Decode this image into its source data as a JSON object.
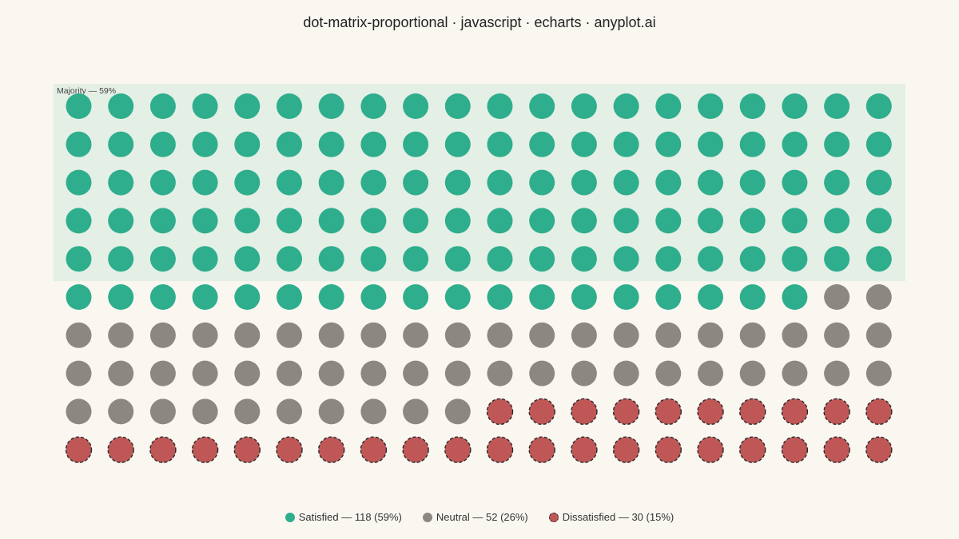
{
  "chart_data": {
    "type": "dot-matrix",
    "title": "dot-matrix-proportional · javascript · echarts · anyplot.ai",
    "grid": {
      "rows": 10,
      "columns": 20,
      "total": 200
    },
    "categories": [
      {
        "name": "Satisfied",
        "count": 118,
        "percent": 59,
        "color": "#2EAE8C",
        "outline": "none",
        "legend": "Satisfied — 118 (59%)"
      },
      {
        "name": "Neutral",
        "count": 52,
        "percent": 26,
        "color": "#8A8880",
        "outline": "none",
        "legend": "Neutral — 52 (26%)"
      },
      {
        "name": "Dissatisfied",
        "count": 30,
        "percent": 15,
        "color": "#C05757",
        "outline": "dashed",
        "legend": "Dissatisfied — 30 (15%)"
      }
    ],
    "annotation": {
      "label": "Majority — 59%",
      "highlight_rows": 5,
      "highlight_color": "#E4EFE6"
    },
    "legend_position": "bottom-center"
  }
}
